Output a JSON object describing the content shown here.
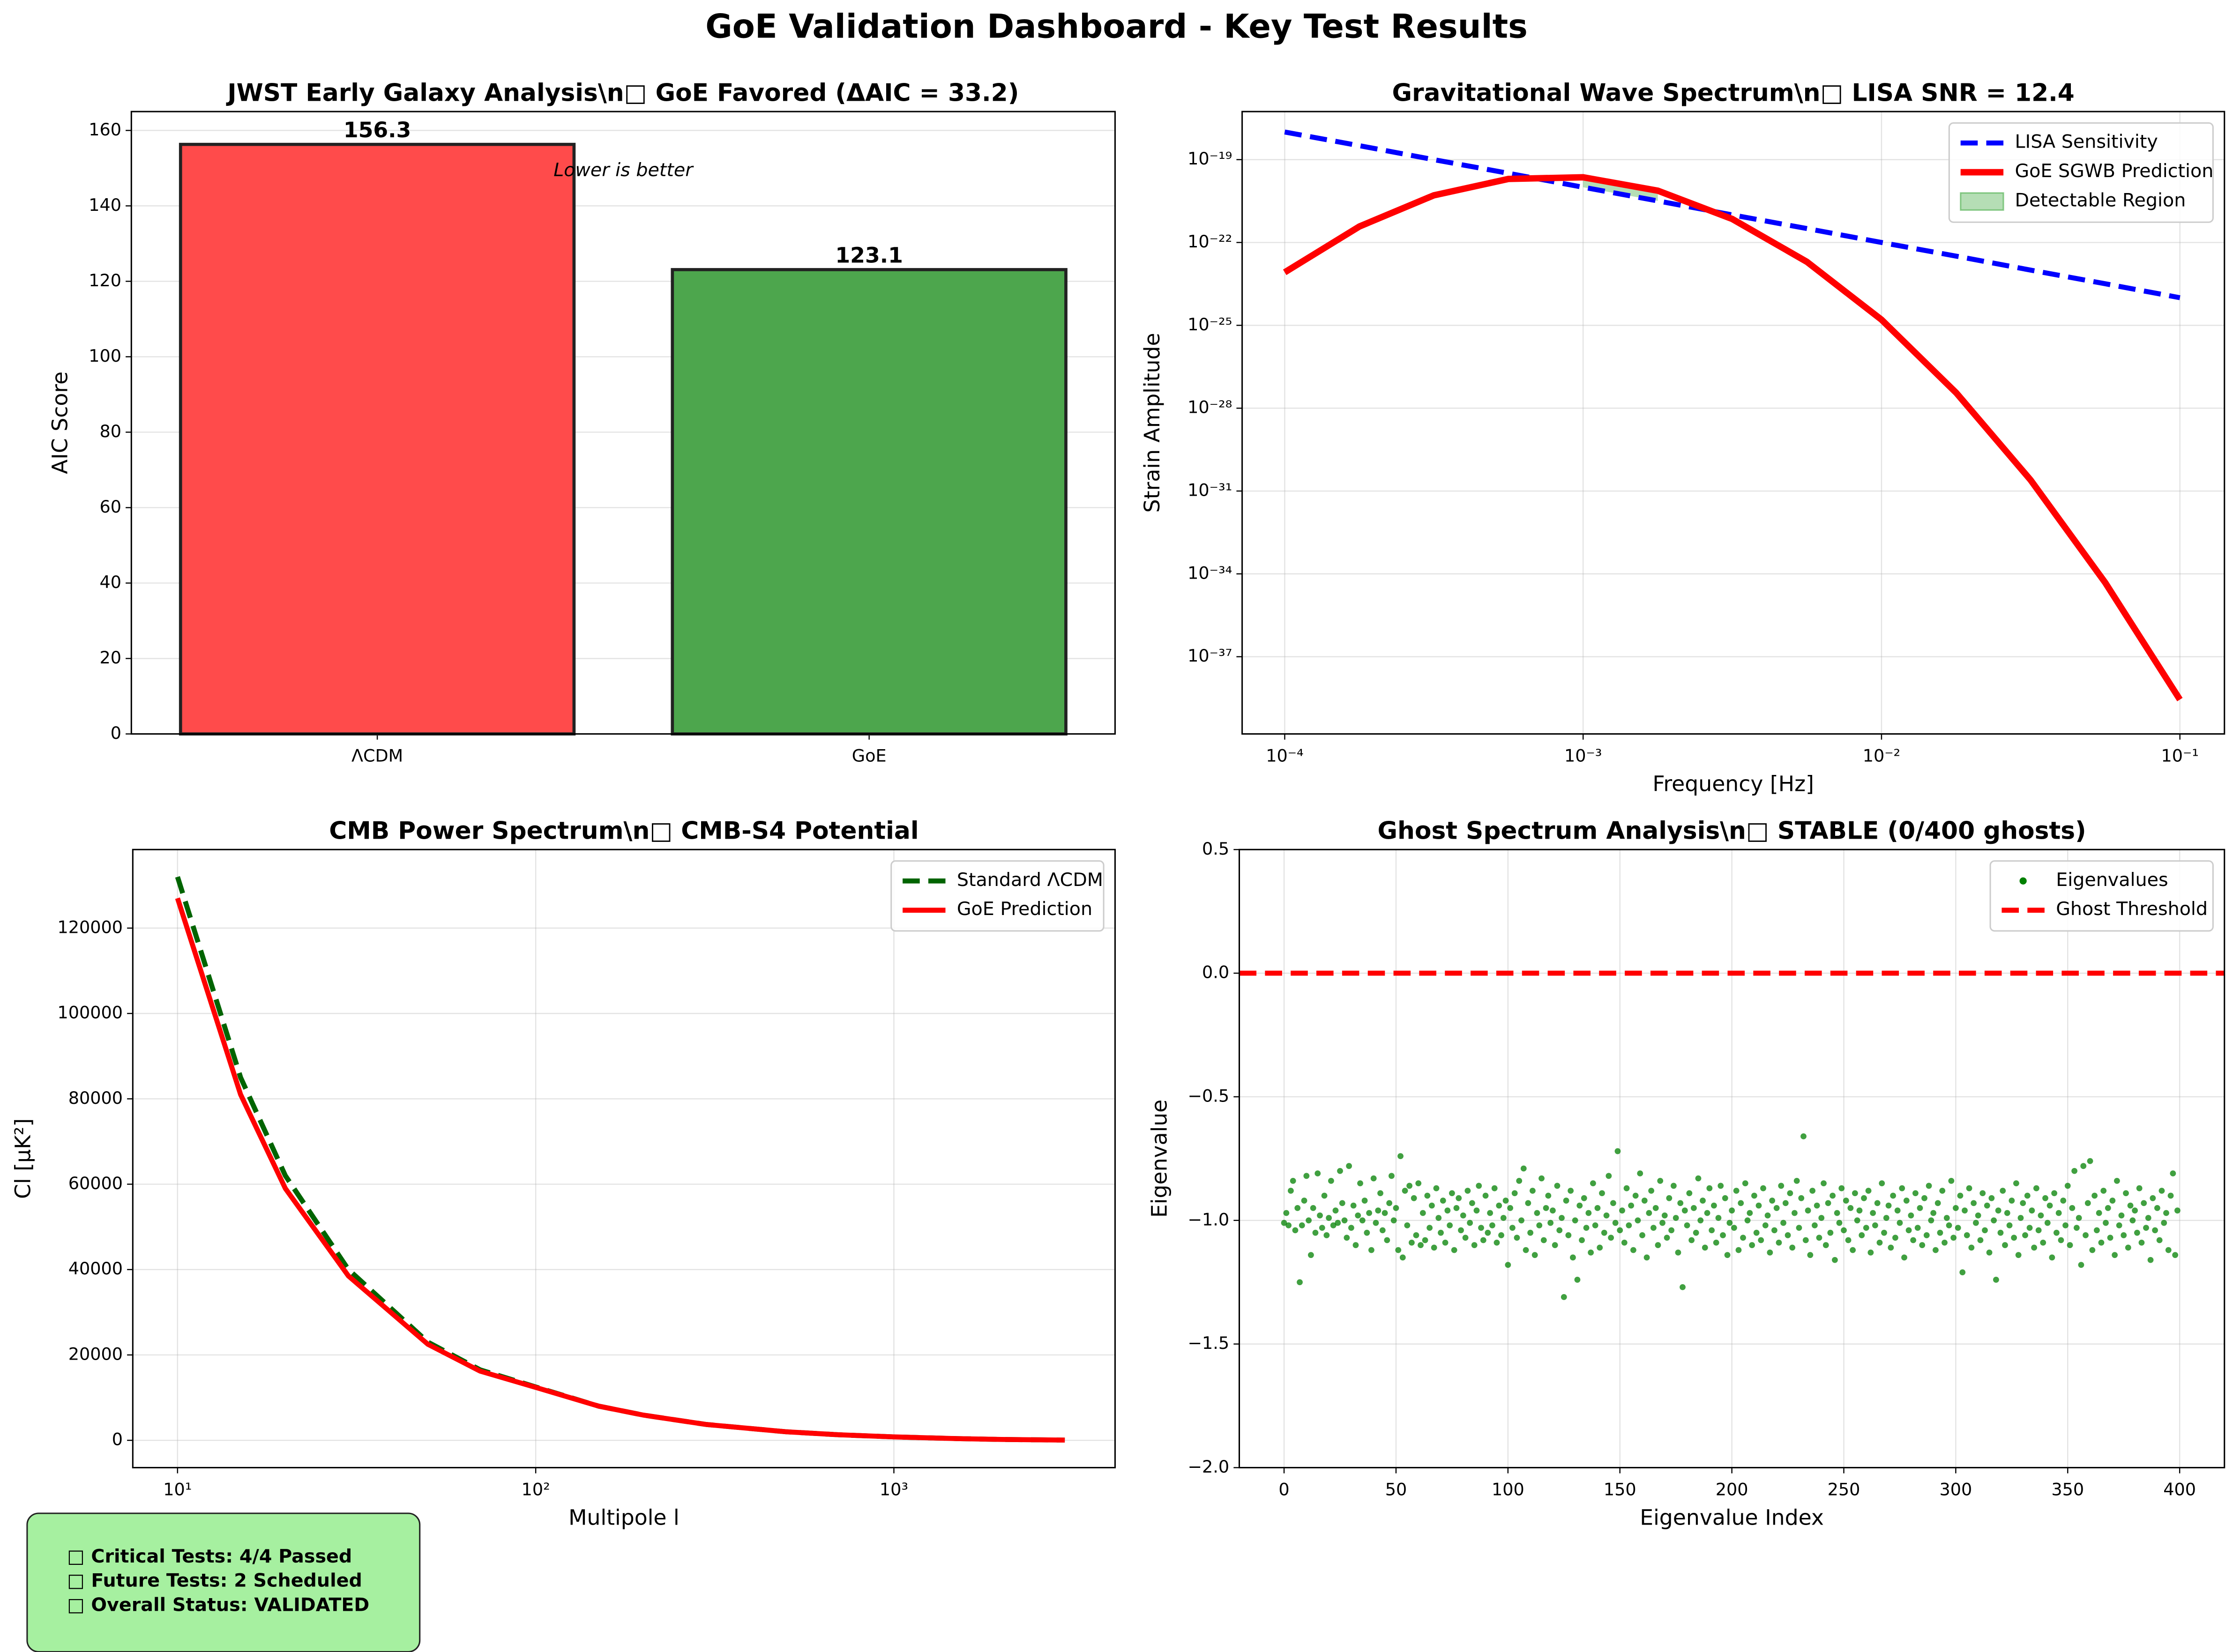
{
  "title": "GoE Validation Dashboard - Key Test Results",
  "status_box": {
    "lines": [
      "□ Critical Tests: 4/4 Passed",
      "□ Future Tests: 2 Scheduled",
      "□ Overall Status: VALIDATED"
    ]
  },
  "chart_data": [
    {
      "type": "bar",
      "title": "JWST Early Galaxy Analysis\\n□ GoE Favored (ΔAIC = 33.2)",
      "ylabel": "AIC Score",
      "annotation": "Lower is better",
      "categories": [
        "ΛCDM",
        "GoE"
      ],
      "values": [
        156.3,
        123.1
      ],
      "colors": [
        "#ff4b4b",
        "#4da64d"
      ],
      "ylim": [
        0,
        165
      ],
      "yticks": [
        0,
        20,
        40,
        60,
        80,
        100,
        120,
        140,
        160
      ],
      "grid": true
    },
    {
      "type": "line",
      "title": "Gravitational Wave Spectrum\\n□ LISA SNR = 12.4",
      "xlabel": "Frequency [Hz]",
      "ylabel": "Strain Amplitude",
      "xlog": true,
      "ylog": true,
      "grid": true,
      "legend": "upper right",
      "x": [
        0.0001,
        0.000178,
        0.000316,
        0.000562,
        0.001,
        0.00178,
        0.00316,
        0.00562,
        0.01,
        0.0178,
        0.0316,
        0.0562,
        0.1
      ],
      "series": [
        {
          "name": "LISA Sensitivity",
          "color": "#0000ff",
          "linestyle": "dashed",
          "linewidth": 3.5,
          "values": [
            1e-18,
            3.2e-19,
            1e-19,
            3.2e-20,
            1e-20,
            3.2e-21,
            1e-21,
            3.2e-22,
            1e-22,
            3.2e-23,
            1e-23,
            3.2e-24,
            1e-24
          ]
        },
        {
          "name": "GoE SGWB Prediction",
          "color": "#ff0000",
          "linestyle": "solid",
          "linewidth": 4.5,
          "values": [
            8.3e-24,
            3.8e-22,
            5.1e-21,
            2e-20,
            2.3e-20,
            7.5e-21,
            7.1e-22,
            2e-23,
            1.6e-25,
            3.6e-28,
            2.5e-31,
            4.8e-35,
            2.8e-39
          ]
        }
      ],
      "fill": {
        "name": "Detectable Region",
        "color": "#2ca02c"
      },
      "xlim": [
        7.2e-05,
        0.141
      ],
      "xticks": [
        {
          "value": 0.0001,
          "label": "10⁻⁴"
        },
        {
          "value": 0.001,
          "label": "10⁻³"
        },
        {
          "value": 0.01,
          "label": "10⁻²"
        },
        {
          "value": 0.1,
          "label": "10⁻¹"
        }
      ],
      "ylim": [
        1.6e-40,
        5.5e-18
      ],
      "yticks": [
        {
          "value": 1e-37,
          "label": "10⁻³⁷"
        },
        {
          "value": 1e-34,
          "label": "10⁻³⁴"
        },
        {
          "value": 1e-31,
          "label": "10⁻³¹"
        },
        {
          "value": 1e-28,
          "label": "10⁻²⁸"
        },
        {
          "value": 1e-25,
          "label": "10⁻²⁵"
        },
        {
          "value": 1e-22,
          "label": "10⁻²²"
        },
        {
          "value": 1e-19,
          "label": "10⁻¹⁹"
        }
      ]
    },
    {
      "type": "line",
      "title": "CMB Power Spectrum\\n□ CMB-S4 Potential",
      "xlabel": "Multipole l",
      "ylabel": "Cl [μK²]",
      "xlog": true,
      "grid": true,
      "legend": "upper right",
      "x": [
        10,
        15,
        20,
        30,
        50,
        70,
        100,
        150,
        200,
        300,
        500,
        700,
        1000,
        1500,
        2000,
        3000
      ],
      "series": [
        {
          "name": "Standard ΛCDM",
          "color": "#006400",
          "linestyle": "dashed",
          "linewidth": 3.5,
          "values": [
            132000,
            85000,
            62000,
            40000,
            23000,
            16500,
            12500,
            8000,
            5900,
            3700,
            2000,
            1300,
            800,
            400,
            200,
            50
          ]
        },
        {
          "name": "GoE Prediction",
          "color": "#ff0000",
          "linestyle": "solid",
          "linewidth": 3.5,
          "values": [
            127000,
            81000,
            59000,
            38500,
            22500,
            16200,
            12400,
            8000,
            5900,
            3700,
            2000,
            1300,
            800,
            400,
            200,
            50
          ]
        }
      ],
      "xlim": [
        7.5,
        4145
      ],
      "xticks": [
        {
          "value": 10,
          "label": "10¹"
        },
        {
          "value": 100,
          "label": "10²"
        },
        {
          "value": 1000,
          "label": "10³"
        }
      ],
      "ylim": [
        -6400,
        138400
      ],
      "yticks": [
        0,
        20000,
        40000,
        60000,
        80000,
        100000,
        120000
      ]
    },
    {
      "type": "scatter",
      "title": "Ghost Spectrum Analysis\\n□ STABLE (0/400 ghosts)",
      "xlabel": "Eigenvalue Index",
      "ylabel": "Eigenvalue",
      "grid": true,
      "legend": "upper right",
      "x": [
        0,
        1,
        2,
        3,
        4,
        5,
        6,
        7,
        8,
        9,
        10,
        11,
        12,
        13,
        14,
        15,
        16,
        17,
        18,
        19,
        20,
        21,
        22,
        23,
        24,
        25,
        26,
        27,
        28,
        29,
        30,
        31,
        32,
        33,
        34,
        35,
        36,
        37,
        38,
        39,
        40,
        41,
        42,
        43,
        44,
        45,
        46,
        47,
        48,
        49,
        50,
        51,
        52,
        53,
        54,
        55,
        56,
        57,
        58,
        59,
        60,
        61,
        62,
        63,
        64,
        65,
        66,
        67,
        68,
        69,
        70,
        71,
        72,
        73,
        74,
        75,
        76,
        77,
        78,
        79,
        80,
        81,
        82,
        83,
        84,
        85,
        86,
        87,
        88,
        89,
        90,
        91,
        92,
        93,
        94,
        95,
        96,
        97,
        98,
        99,
        100,
        101,
        102,
        103,
        104,
        105,
        106,
        107,
        108,
        109,
        110,
        111,
        112,
        113,
        114,
        115,
        116,
        117,
        118,
        119,
        120,
        121,
        122,
        123,
        124,
        125,
        126,
        127,
        128,
        129,
        130,
        131,
        132,
        133,
        134,
        135,
        136,
        137,
        138,
        139,
        140,
        141,
        142,
        143,
        144,
        145,
        146,
        147,
        148,
        149,
        150,
        151,
        152,
        153,
        154,
        155,
        156,
        157,
        158,
        159,
        160,
        161,
        162,
        163,
        164,
        165,
        166,
        167,
        168,
        169,
        170,
        171,
        172,
        173,
        174,
        175,
        176,
        177,
        178,
        179,
        180,
        181,
        182,
        183,
        184,
        185,
        186,
        187,
        188,
        189,
        190,
        191,
        192,
        193,
        194,
        195,
        196,
        197,
        198,
        199,
        200,
        201,
        202,
        203,
        204,
        205,
        206,
        207,
        208,
        209,
        210,
        211,
        212,
        213,
        214,
        215,
        216,
        217,
        218,
        219,
        220,
        221,
        222,
        223,
        224,
        225,
        226,
        227,
        228,
        229,
        230,
        231,
        232,
        233,
        234,
        235,
        236,
        237,
        238,
        239,
        240,
        241,
        242,
        243,
        244,
        245,
        246,
        247,
        248,
        249,
        250,
        251,
        252,
        253,
        254,
        255,
        256,
        257,
        258,
        259,
        260,
        261,
        262,
        263,
        264,
        265,
        266,
        267,
        268,
        269,
        270,
        271,
        272,
        273,
        274,
        275,
        276,
        277,
        278,
        279,
        280,
        281,
        282,
        283,
        284,
        285,
        286,
        287,
        288,
        289,
        290,
        291,
        292,
        293,
        294,
        295,
        296,
        297,
        298,
        299,
        300,
        301,
        302,
        303,
        304,
        305,
        306,
        307,
        308,
        309,
        310,
        311,
        312,
        313,
        314,
        315,
        316,
        317,
        318,
        319,
        320,
        321,
        322,
        323,
        324,
        325,
        326,
        327,
        328,
        329,
        330,
        331,
        332,
        333,
        334,
        335,
        336,
        337,
        338,
        339,
        340,
        341,
        342,
        343,
        344,
        345,
        346,
        347,
        348,
        349,
        350,
        351,
        352,
        353,
        354,
        355,
        356,
        357,
        358,
        359,
        360,
        361,
        362,
        363,
        364,
        365,
        366,
        367,
        368,
        369,
        370,
        371,
        372,
        373,
        374,
        375,
        376,
        377,
        378,
        379,
        380,
        381,
        382,
        383,
        384,
        385,
        386,
        387,
        388,
        389,
        390,
        391,
        392,
        393,
        394,
        395,
        396,
        397,
        398,
        399
      ],
      "series": [
        {
          "name": "Eigenvalues",
          "color": "#008000",
          "values": [
            -1.01,
            -0.97,
            -1.02,
            -0.88,
            -0.84,
            -1.04,
            -0.95,
            -1.25,
            -1.02,
            -0.92,
            -0.82,
            -1.0,
            -1.14,
            -0.95,
            -1.05,
            -0.81,
            -0.98,
            -1.03,
            -0.9,
            -1.06,
            -0.99,
            -0.84,
            -1.02,
            -0.96,
            -1.01,
            -0.8,
            -0.93,
            -1.0,
            -1.07,
            -0.78,
            -1.03,
            -0.94,
            -1.1,
            -0.98,
            -0.85,
            -1.0,
            -0.92,
            -1.05,
            -0.97,
            -1.12,
            -0.83,
            -1.01,
            -0.96,
            -0.89,
            -1.04,
            -0.97,
            -1.08,
            -0.93,
            -0.82,
            -1.0,
            -0.95,
            -1.12,
            -0.74,
            -1.15,
            -0.88,
            -1.02,
            -0.86,
            -1.09,
            -0.91,
            -1.06,
            -0.85,
            -1.1,
            -0.97,
            -1.08,
            -0.9,
            -1.03,
            -0.94,
            -1.11,
            -0.87,
            -0.99,
            -1.05,
            -0.92,
            -1.09,
            -0.96,
            -1.02,
            -0.89,
            -1.12,
            -0.95,
            -0.91,
            -1.04,
            -0.98,
            -1.07,
            -0.88,
            -1.01,
            -0.93,
            -1.1,
            -0.96,
            -0.86,
            -1.03,
            -1.08,
            -0.9,
            -1.05,
            -0.97,
            -1.02,
            -0.87,
            -1.09,
            -0.94,
            -1.06,
            -0.99,
            -0.92,
            -1.18,
            -0.95,
            -1.03,
            -0.89,
            -1.07,
            -0.84,
            -1.0,
            -0.79,
            -1.12,
            -0.93,
            -1.05,
            -0.88,
            -1.14,
            -0.97,
            -1.02,
            -0.83,
            -1.08,
            -0.95,
            -0.9,
            -1.01,
            -0.96,
            -1.1,
            -0.86,
            -1.04,
            -0.99,
            -1.31,
            -0.92,
            -1.06,
            -0.88,
            -1.15,
            -1.0,
            -1.24,
            -0.94,
            -1.08,
            -0.91,
            -1.03,
            -0.97,
            -1.13,
            -0.85,
            -1.02,
            -0.95,
            -1.11,
            -0.89,
            -1.05,
            -0.98,
            -0.82,
            -1.07,
            -0.93,
            -1.01,
            -0.72,
            -1.04,
            -0.96,
            -1.09,
            -0.87,
            -1.02,
            -0.94,
            -1.12,
            -0.9,
            -1.0,
            -0.81,
            -1.06,
            -0.92,
            -1.15,
            -0.97,
            -0.88,
            -1.03,
            -0.95,
            -1.1,
            -0.84,
            -1.01,
            -0.98,
            -1.07,
            -0.91,
            -1.04,
            -0.86,
            -0.99,
            -1.13,
            -0.93,
            -1.27,
            -0.96,
            -1.02,
            -0.89,
            -1.08,
            -0.95,
            -1.05,
            -0.83,
            -1.0,
            -0.92,
            -1.11,
            -0.97,
            -0.87,
            -1.04,
            -0.94,
            -1.09,
            -0.99,
            -0.86,
            -1.06,
            -0.91,
            -1.14,
            -1.01,
            -0.96,
            -1.03,
            -0.88,
            -1.12,
            -0.93,
            -1.07,
            -0.85,
            -1.0,
            -0.97,
            -1.1,
            -0.9,
            -1.05,
            -0.94,
            -1.08,
            -0.87,
            -1.02,
            -0.98,
            -1.13,
            -0.92,
            -1.04,
            -0.95,
            -1.09,
            -0.86,
            -1.01,
            -0.93,
            -1.06,
            -0.89,
            -1.11,
            -0.97,
            -0.84,
            -1.03,
            -0.91,
            -0.66,
            -1.08,
            -0.96,
            -1.14,
            -0.88,
            -1.02,
            -0.94,
            -1.07,
            -0.99,
            -0.85,
            -1.1,
            -0.93,
            -1.05,
            -0.9,
            -1.16,
            -0.97,
            -1.01,
            -0.87,
            -1.04,
            -0.92,
            -1.08,
            -0.95,
            -1.12,
            -0.89,
            -1.0,
            -0.96,
            -1.06,
            -0.91,
            -1.03,
            -0.88,
            -1.13,
            -0.97,
            -1.02,
            -0.93,
            -1.09,
            -0.85,
            -1.05,
            -0.99,
            -0.94,
            -1.11,
            -0.9,
            -1.07,
            -0.96,
            -1.01,
            -0.87,
            -1.15,
            -0.92,
            -1.04,
            -0.98,
            -1.08,
            -0.89,
            -1.03,
            -0.95,
            -1.1,
            -0.91,
            -1.06,
            -0.86,
            -1.0,
            -0.97,
            -1.12,
            -0.93,
            -1.05,
            -0.88,
            -1.09,
            -0.99,
            -1.02,
            -0.84,
            -1.07,
            -0.95,
            -1.03,
            -0.9,
            -1.21,
            -0.96,
            -1.06,
            -0.87,
            -1.11,
            -0.93,
            -1.01,
            -0.98,
            -1.08,
            -0.89,
            -1.04,
            -0.94,
            -1.13,
            -0.91,
            -1.0,
            -1.24,
            -0.96,
            -1.05,
            -0.88,
            -1.1,
            -0.97,
            -1.02,
            -0.92,
            -1.07,
            -0.85,
            -1.14,
            -0.99,
            -0.93,
            -1.06,
            -0.9,
            -1.03,
            -0.96,
            -1.11,
            -0.87,
            -1.04,
            -0.98,
            -1.09,
            -0.91,
            -1.01,
            -0.94,
            -1.15,
            -0.89,
            -1.05,
            -0.97,
            -1.08,
            -0.92,
            -1.02,
            -0.86,
            -1.1,
            -0.95,
            -0.8,
            -1.03,
            -0.99,
            -1.18,
            -0.78,
            -1.06,
            -0.93,
            -0.76,
            -1.12,
            -0.9,
            -1.04,
            -0.97,
            -1.09,
            -0.88,
            -1.01,
            -0.95,
            -1.07,
            -0.92,
            -1.14,
            -0.84,
            -1.02,
            -0.98,
            -1.06,
            -0.89,
            -1.11,
            -0.94,
            -1.0,
            -0.96,
            -1.05,
            -0.87,
            -1.09,
            -0.93,
            -1.03,
            -0.99,
            -1.16,
            -0.91,
            -1.04,
            -0.95,
            -1.08,
            -0.88,
            -1.01,
            -0.97,
            -1.12,
            -0.9,
            -0.81,
            -1.14,
            -0.96
          ]
        }
      ],
      "hlines": [
        {
          "name": "Ghost Threshold",
          "y": 0,
          "color": "#ff0000",
          "linestyle": "dashed"
        }
      ],
      "xlim": [
        -20,
        420
      ],
      "xticks": [
        0,
        50,
        100,
        150,
        200,
        250,
        300,
        350,
        400
      ],
      "ylim": [
        -2,
        0.5
      ],
      "yticks": [
        {
          "value": -2,
          "label": "−2.0"
        },
        {
          "value": -1.5,
          "label": "−1.5"
        },
        {
          "value": -1,
          "label": "−1.0"
        },
        {
          "value": -0.5,
          "label": "−0.5"
        },
        {
          "value": 0,
          "label": "0.0"
        },
        0.5
      ]
    }
  ]
}
